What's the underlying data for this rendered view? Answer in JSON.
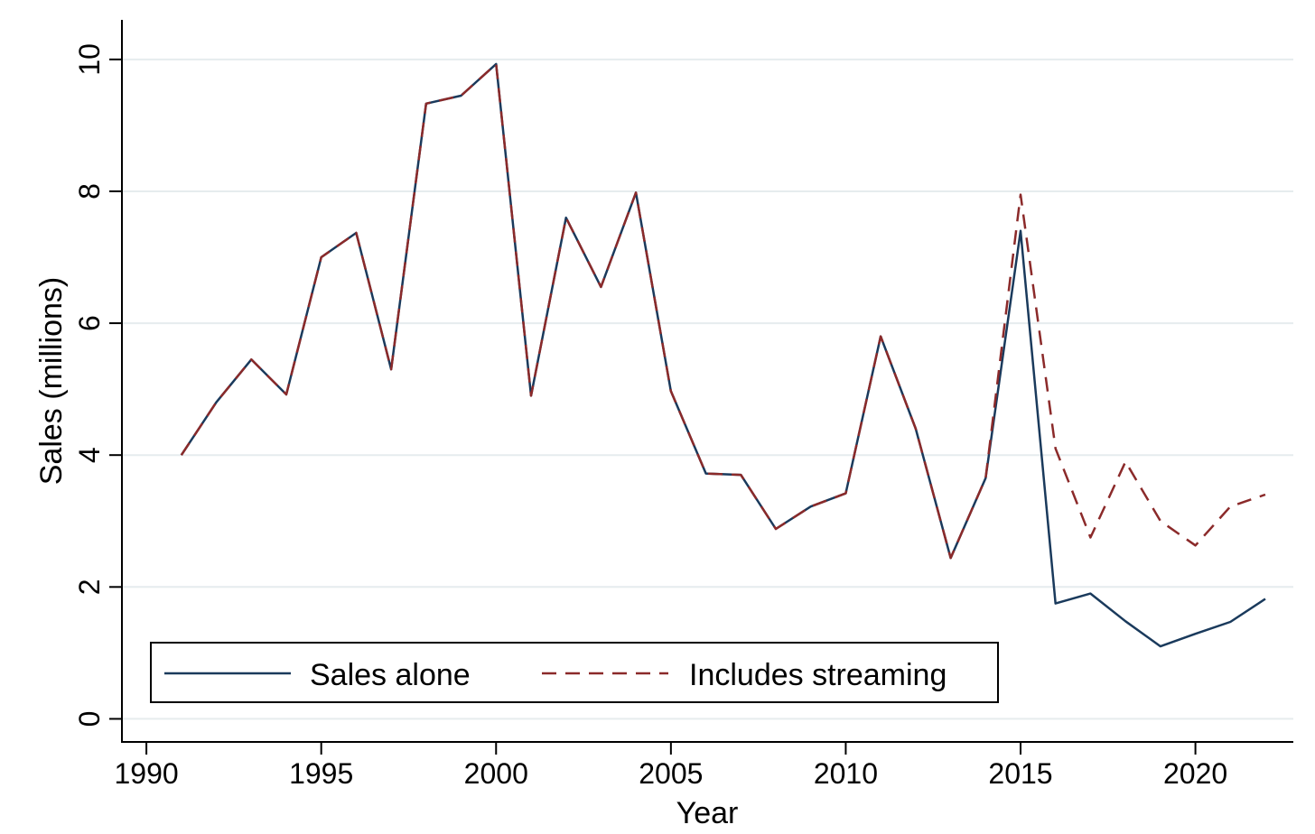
{
  "chart_data": {
    "type": "line",
    "title": "",
    "xlabel": "Year",
    "ylabel": "Sales (millions)",
    "xlim": [
      1989.3,
      2022.8
    ],
    "ylim": [
      -0.35,
      10.6
    ],
    "xticks": [
      1990,
      1995,
      2000,
      2005,
      2010,
      2015,
      2020
    ],
    "yticks": [
      0,
      2,
      4,
      6,
      8,
      10
    ],
    "grid": "horizontal",
    "legend_position": "bottom-left",
    "colors": {
      "sales_alone": "#1a3a5c",
      "includes_streaming": "#8b2a2a",
      "grid": "#e6ecee"
    },
    "x": [
      1991,
      1992,
      1993,
      1994,
      1995,
      1996,
      1997,
      1998,
      1999,
      2000,
      2001,
      2002,
      2003,
      2004,
      2005,
      2006,
      2007,
      2008,
      2009,
      2010,
      2011,
      2012,
      2013,
      2014,
      2015,
      2016,
      2017,
      2018,
      2019,
      2020,
      2021,
      2022
    ],
    "series": [
      {
        "name": "Sales alone",
        "style": "solid",
        "values": [
          4.0,
          4.8,
          5.45,
          4.92,
          7.0,
          7.37,
          5.3,
          9.33,
          9.45,
          9.93,
          4.9,
          7.6,
          6.55,
          7.98,
          4.97,
          3.72,
          3.7,
          2.88,
          3.22,
          3.42,
          5.8,
          4.4,
          2.44,
          3.65,
          7.4,
          1.75,
          1.9,
          1.48,
          1.1,
          1.29,
          1.47,
          1.82
        ]
      },
      {
        "name": "Includes streaming",
        "style": "dashed",
        "values": [
          4.0,
          4.8,
          5.45,
          4.92,
          7.0,
          7.37,
          5.3,
          9.33,
          9.45,
          9.93,
          4.9,
          7.6,
          6.55,
          7.98,
          4.97,
          3.72,
          3.7,
          2.88,
          3.22,
          3.42,
          5.8,
          4.4,
          2.44,
          3.65,
          7.95,
          4.1,
          2.75,
          3.9,
          3.0,
          2.63,
          3.22,
          3.4
        ]
      }
    ]
  }
}
